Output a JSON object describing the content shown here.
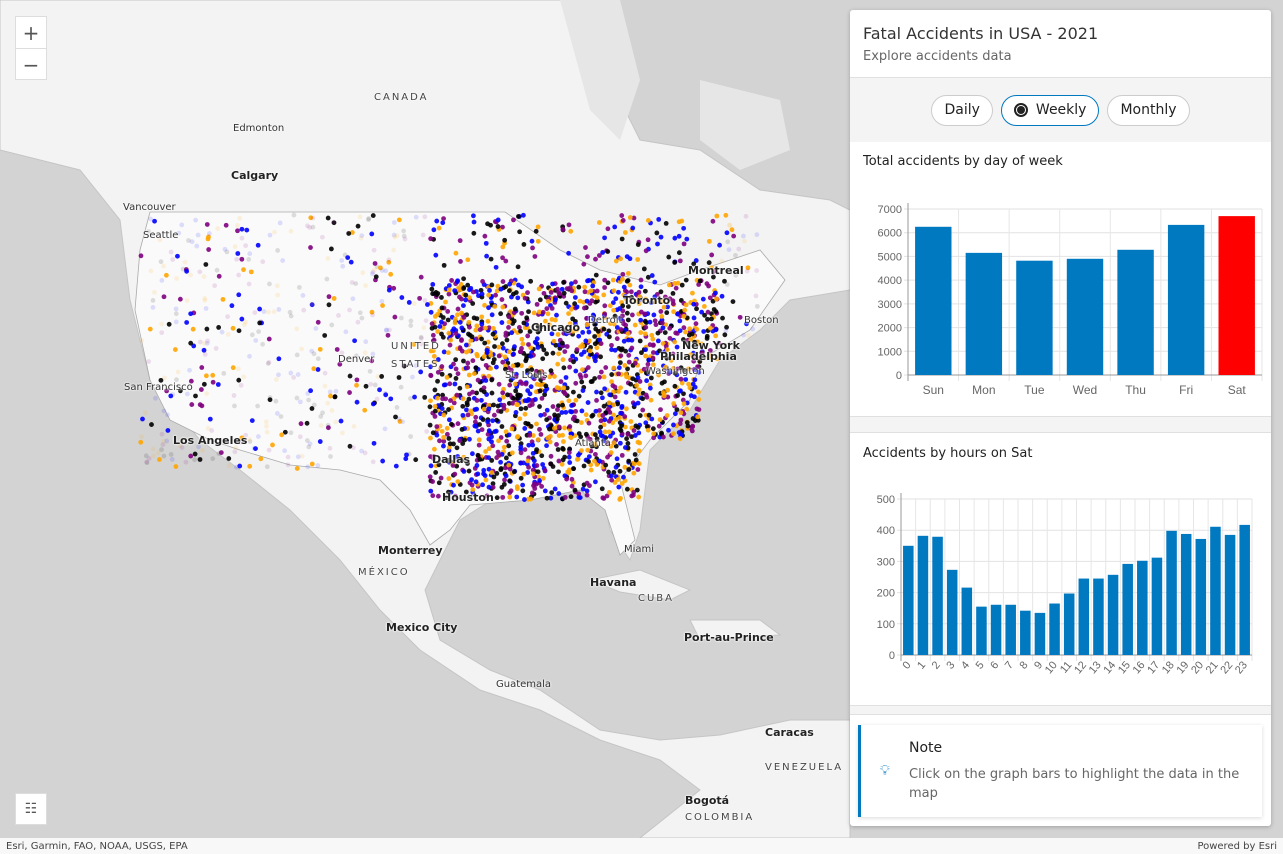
{
  "map": {
    "labels": [
      {
        "text": "CANADA",
        "cls": "c",
        "l": 374,
        "t": 92
      },
      {
        "text": "Edmonton",
        "cls": "",
        "l": 233,
        "t": 123
      },
      {
        "text": "Calgary",
        "cls": "b",
        "l": 231,
        "t": 169
      },
      {
        "text": "Vancouver",
        "cls": "",
        "l": 123,
        "t": 202
      },
      {
        "text": "Seattle",
        "cls": "",
        "l": 143,
        "t": 230
      },
      {
        "text": "Montreal",
        "cls": "b",
        "l": 688,
        "t": 264
      },
      {
        "text": "Toronto",
        "cls": "b",
        "l": 623,
        "t": 294
      },
      {
        "text": "Boston",
        "cls": "",
        "l": 744,
        "t": 315
      },
      {
        "text": "Detroit",
        "cls": "",
        "l": 588,
        "t": 315
      },
      {
        "text": "Chicago",
        "cls": "b",
        "l": 531,
        "t": 321
      },
      {
        "text": "New York",
        "cls": "b",
        "l": 682,
        "t": 339
      },
      {
        "text": "Philadelphia",
        "cls": "b",
        "l": 660,
        "t": 350
      },
      {
        "text": "UNITED",
        "cls": "c",
        "l": 391,
        "t": 341
      },
      {
        "text": "STATES",
        "cls": "c",
        "l": 391,
        "t": 359
      },
      {
        "text": "Denver",
        "cls": "",
        "l": 338,
        "t": 354
      },
      {
        "text": "Washington",
        "cls": "",
        "l": 646,
        "t": 366
      },
      {
        "text": "St. Louis",
        "cls": "",
        "l": 505,
        "t": 370
      },
      {
        "text": "San Francisco",
        "cls": "",
        "l": 124,
        "t": 382
      },
      {
        "text": "Los Angeles",
        "cls": "b",
        "l": 173,
        "t": 434
      },
      {
        "text": "Atlanta",
        "cls": "",
        "l": 575,
        "t": 438
      },
      {
        "text": "Dallas",
        "cls": "b",
        "l": 432,
        "t": 453
      },
      {
        "text": "Houston",
        "cls": "b",
        "l": 442,
        "t": 491
      },
      {
        "text": "Miami",
        "cls": "",
        "l": 624,
        "t": 544
      },
      {
        "text": "Monterrey",
        "cls": "b",
        "l": 378,
        "t": 544
      },
      {
        "text": "MÉXICO",
        "cls": "c",
        "l": 358,
        "t": 567
      },
      {
        "text": "Havana",
        "cls": "b",
        "l": 590,
        "t": 576
      },
      {
        "text": "CUBA",
        "cls": "c",
        "l": 638,
        "t": 593
      },
      {
        "text": "Mexico City",
        "cls": "b",
        "l": 386,
        "t": 621
      },
      {
        "text": "Port-au-Prince",
        "cls": "b",
        "l": 684,
        "t": 631
      },
      {
        "text": "Guatemala",
        "cls": "",
        "l": 496,
        "t": 679
      },
      {
        "text": "Caracas",
        "cls": "b",
        "l": 765,
        "t": 726
      },
      {
        "text": "VENEZUELA",
        "cls": "c",
        "l": 765,
        "t": 762
      },
      {
        "text": "Bogotá",
        "cls": "b",
        "l": 685,
        "t": 794
      },
      {
        "text": "COLOMBIA",
        "cls": "c",
        "l": 685,
        "t": 812
      }
    ],
    "zoom_in": "+",
    "zoom_out": "−",
    "legend_icon": "☷",
    "attribution": "Esri, Garmin, FAO, NOAA, USGS, EPA",
    "powered_by": "Powered by Esri",
    "dot_colors": [
      "#ffa500",
      "#0000ff",
      "#000000",
      "#800080"
    ]
  },
  "panel": {
    "title": "Fatal Accidents in USA - 2021",
    "subtitle": "Explore accidents data",
    "modes": [
      {
        "label": "Daily",
        "selected": false
      },
      {
        "label": "Weekly",
        "selected": true
      },
      {
        "label": "Monthly",
        "selected": false
      }
    ],
    "note_title": "Note",
    "note_text": "Click on the graph bars to highlight the data in the map"
  },
  "chart_data": [
    {
      "type": "bar",
      "title": "Total accidents by day of week",
      "categories": [
        "Sun",
        "Mon",
        "Tue",
        "Wed",
        "Thu",
        "Fri",
        "Sat"
      ],
      "values": [
        6250,
        5150,
        4820,
        4900,
        5280,
        6330,
        6700
      ],
      "highlight": "Sat",
      "ylim": [
        0,
        7000
      ],
      "yticks": [
        0,
        1000,
        2000,
        3000,
        4000,
        5000,
        6000,
        7000
      ],
      "bar_color": "#0079c1",
      "highlight_color": "#ff0000",
      "grid": true
    },
    {
      "type": "bar",
      "title": "Accidents by hours on Sat",
      "categories": [
        "0",
        "1",
        "2",
        "3",
        "4",
        "5",
        "6",
        "7",
        "8",
        "9",
        "10",
        "11",
        "12",
        "13",
        "14",
        "15",
        "16",
        "17",
        "18",
        "19",
        "20",
        "21",
        "22",
        "23"
      ],
      "values": [
        350,
        382,
        379,
        273,
        216,
        155,
        161,
        161,
        142,
        135,
        165,
        197,
        245,
        245,
        257,
        292,
        302,
        312,
        398,
        388,
        372,
        411,
        385,
        417
      ],
      "ylim": [
        0,
        500
      ],
      "yticks": [
        0,
        100,
        200,
        300,
        400,
        500
      ],
      "bar_color": "#0079c1",
      "grid": true
    }
  ]
}
